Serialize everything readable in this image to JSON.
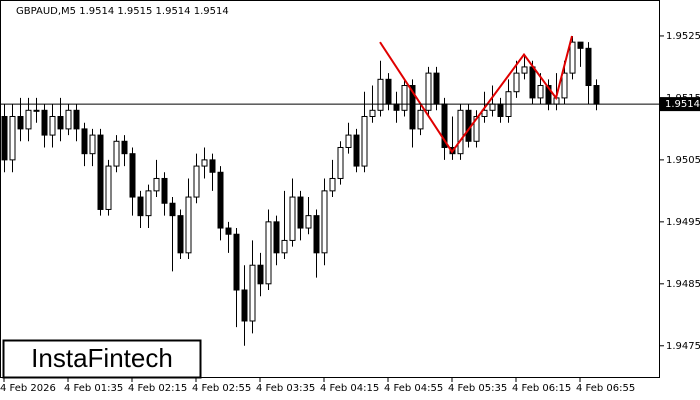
{
  "chart_data": {
    "type": "candlestick",
    "title": "GBPAUD,M5  1.9514 1.9515 1.9514 1.9514",
    "watermark": "InstaFintech",
    "candles": [
      [
        1.9512,
        1.9514,
        1.9503,
        1.9505
      ],
      [
        1.9505,
        1.9514,
        1.9503,
        1.9512
      ],
      [
        1.9512,
        1.9515,
        1.9508,
        1.951
      ],
      [
        1.951,
        1.9515,
        1.9508,
        1.9513
      ],
      [
        1.9513,
        1.9515,
        1.9511,
        1.9513
      ],
      [
        1.9513,
        1.9514,
        1.9507,
        1.9509
      ],
      [
        1.9509,
        1.9514,
        1.9507,
        1.9512
      ],
      [
        1.9512,
        1.9515,
        1.9508,
        1.951
      ],
      [
        1.951,
        1.9514,
        1.9509,
        1.9513
      ],
      [
        1.9513,
        1.9514,
        1.9508,
        1.951
      ],
      [
        1.951,
        1.9511,
        1.9504,
        1.9506
      ],
      [
        1.9506,
        1.951,
        1.9504,
        1.9509
      ],
      [
        1.9509,
        1.951,
        1.9496,
        1.9497
      ],
      [
        1.9497,
        1.9505,
        1.9496,
        1.9504
      ],
      [
        1.9504,
        1.9509,
        1.9503,
        1.9508
      ],
      [
        1.9508,
        1.9509,
        1.9504,
        1.9506
      ],
      [
        1.9506,
        1.9507,
        1.9496,
        1.9499
      ],
      [
        1.9499,
        1.95,
        1.9494,
        1.9496
      ],
      [
        1.9496,
        1.9501,
        1.9494,
        1.95
      ],
      [
        1.95,
        1.9505,
        1.9499,
        1.9502
      ],
      [
        1.9502,
        1.9503,
        1.9496,
        1.9498
      ],
      [
        1.9498,
        1.9499,
        1.9487,
        1.9496
      ],
      [
        1.9496,
        1.9497,
        1.9489,
        1.949
      ],
      [
        1.949,
        1.9502,
        1.9489,
        1.9499
      ],
      [
        1.9499,
        1.9506,
        1.9498,
        1.9504
      ],
      [
        1.9504,
        1.9507,
        1.9502,
        1.9505
      ],
      [
        1.9505,
        1.9506,
        1.95,
        1.9503
      ],
      [
        1.9503,
        1.9504,
        1.9492,
        1.9494
      ],
      [
        1.9494,
        1.9495,
        1.949,
        1.9493
      ],
      [
        1.9493,
        1.9494,
        1.9478,
        1.9484
      ],
      [
        1.9484,
        1.9488,
        1.9475,
        1.9479
      ],
      [
        1.9479,
        1.9492,
        1.9477,
        1.9488
      ],
      [
        1.9488,
        1.949,
        1.9483,
        1.9485
      ],
      [
        1.9485,
        1.9497,
        1.9484,
        1.9495
      ],
      [
        1.9495,
        1.9496,
        1.9488,
        1.949
      ],
      [
        1.949,
        1.95,
        1.9489,
        1.9492
      ],
      [
        1.9492,
        1.9502,
        1.9491,
        1.9499
      ],
      [
        1.9499,
        1.95,
        1.9492,
        1.9494
      ],
      [
        1.9494,
        1.9499,
        1.9493,
        1.9496
      ],
      [
        1.9496,
        1.9497,
        1.9486,
        1.949
      ],
      [
        1.949,
        1.9502,
        1.9488,
        1.95
      ],
      [
        1.95,
        1.9505,
        1.9499,
        1.9502
      ],
      [
        1.9502,
        1.9508,
        1.9501,
        1.9507
      ],
      [
        1.9507,
        1.9511,
        1.9506,
        1.9509
      ],
      [
        1.9509,
        1.951,
        1.9503,
        1.9504
      ],
      [
        1.9504,
        1.9516,
        1.9503,
        1.9512
      ],
      [
        1.9512,
        1.9517,
        1.9511,
        1.9513
      ],
      [
        1.9513,
        1.9521,
        1.9512,
        1.9518
      ],
      [
        1.9518,
        1.9519,
        1.9513,
        1.9514
      ],
      [
        1.9514,
        1.9516,
        1.9511,
        1.9513
      ],
      [
        1.9513,
        1.9518,
        1.9512,
        1.9517
      ],
      [
        1.9517,
        1.9518,
        1.9507,
        1.951
      ],
      [
        1.951,
        1.9514,
        1.9509,
        1.9513
      ],
      [
        1.9513,
        1.952,
        1.9512,
        1.9519
      ],
      [
        1.9519,
        1.952,
        1.9513,
        1.9514
      ],
      [
        1.9514,
        1.9515,
        1.9505,
        1.9507
      ],
      [
        1.9507,
        1.9512,
        1.9505,
        1.9506
      ],
      [
        1.9506,
        1.9514,
        1.9505,
        1.9513
      ],
      [
        1.9513,
        1.9514,
        1.9507,
        1.9508
      ],
      [
        1.9508,
        1.9513,
        1.9507,
        1.9512
      ],
      [
        1.9512,
        1.9516,
        1.9511,
        1.9513
      ],
      [
        1.9513,
        1.9517,
        1.9512,
        1.9514
      ],
      [
        1.9514,
        1.9515,
        1.9511,
        1.9512
      ],
      [
        1.9512,
        1.9518,
        1.9511,
        1.9516
      ],
      [
        1.9516,
        1.9521,
        1.9515,
        1.9519
      ],
      [
        1.9519,
        1.9522,
        1.9518,
        1.952
      ],
      [
        1.952,
        1.9521,
        1.9514,
        1.9515
      ],
      [
        1.9515,
        1.9519,
        1.9514,
        1.9517
      ],
      [
        1.9517,
        1.9518,
        1.9513,
        1.9514
      ],
      [
        1.9514,
        1.9519,
        1.9513,
        1.9515
      ],
      [
        1.9515,
        1.9521,
        1.9514,
        1.9519
      ],
      [
        1.9519,
        1.9525,
        1.9518,
        1.9524
      ],
      [
        1.9524,
        1.9524,
        1.952,
        1.9523
      ],
      [
        1.9523,
        1.9524,
        1.9514,
        1.9517
      ],
      [
        1.9517,
        1.9518,
        1.9513,
        1.9514
      ]
    ],
    "pattern": {
      "color": "#e00000",
      "x": [
        47,
        56,
        65,
        69,
        71
      ],
      "values": [
        1.9524,
        1.95063,
        1.9522,
        1.9515,
        1.9525
      ]
    },
    "current_price": {
      "value": 1.9514,
      "label": "1.9514"
    },
    "xlim": [
      -0.5,
      82
    ],
    "ylim": [
      1.94698,
      1.95308
    ],
    "yticks": [
      1.9525,
      1.9515,
      1.9505,
      1.9495,
      1.9485,
      1.9475
    ],
    "xticks": [
      {
        "value": 0,
        "label": "4 Feb 2026"
      },
      {
        "value": 8,
        "label": "4 Feb 01:35"
      },
      {
        "value": 16,
        "label": "4 Feb 02:15"
      },
      {
        "value": 24,
        "label": "4 Feb 02:55"
      },
      {
        "value": 32,
        "label": "4 Feb 03:35"
      },
      {
        "value": 40,
        "label": "4 Feb 04:15"
      },
      {
        "value": 48,
        "label": "4 Feb 04:55"
      },
      {
        "value": 56,
        "label": "4 Feb 05:35"
      },
      {
        "value": 64,
        "label": "4 Feb 06:15"
      },
      {
        "value": 72,
        "label": "4 Feb 06:55"
      }
    ]
  }
}
